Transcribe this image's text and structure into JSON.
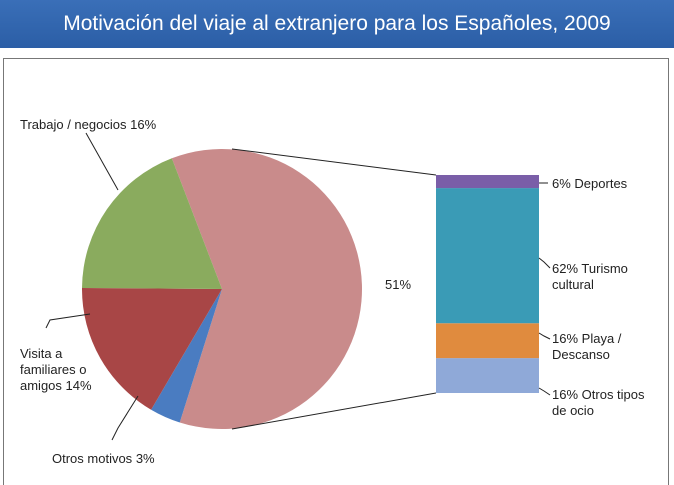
{
  "chart_data": {
    "type": "pie",
    "title": "Motivación del viaje al extranjero para los Españoles, 2009",
    "pie": {
      "categories": [
        "Trabajo / negocios",
        "Visita a familiares o amigos",
        "Otros motivos",
        null
      ],
      "values": [
        16,
        14,
        3,
        51
      ],
      "value_labels": [
        "16%",
        "14%",
        "3%",
        "51%"
      ],
      "colors": [
        "#8aab5e",
        "#a84646",
        "#4a7cc1",
        "#c98b8b"
      ]
    },
    "bar": {
      "categories": [
        "Deportes",
        "Turismo cultural",
        "Playa / Descanso",
        "Otros tipos de ocio"
      ],
      "values": [
        6,
        62,
        16,
        16
      ],
      "value_labels": [
        "6%",
        "62%",
        "16%",
        "16%"
      ],
      "colors": [
        "#7a5ea8",
        "#3a9bb6",
        "#e08b3e",
        "#8fa9d8"
      ]
    }
  }
}
